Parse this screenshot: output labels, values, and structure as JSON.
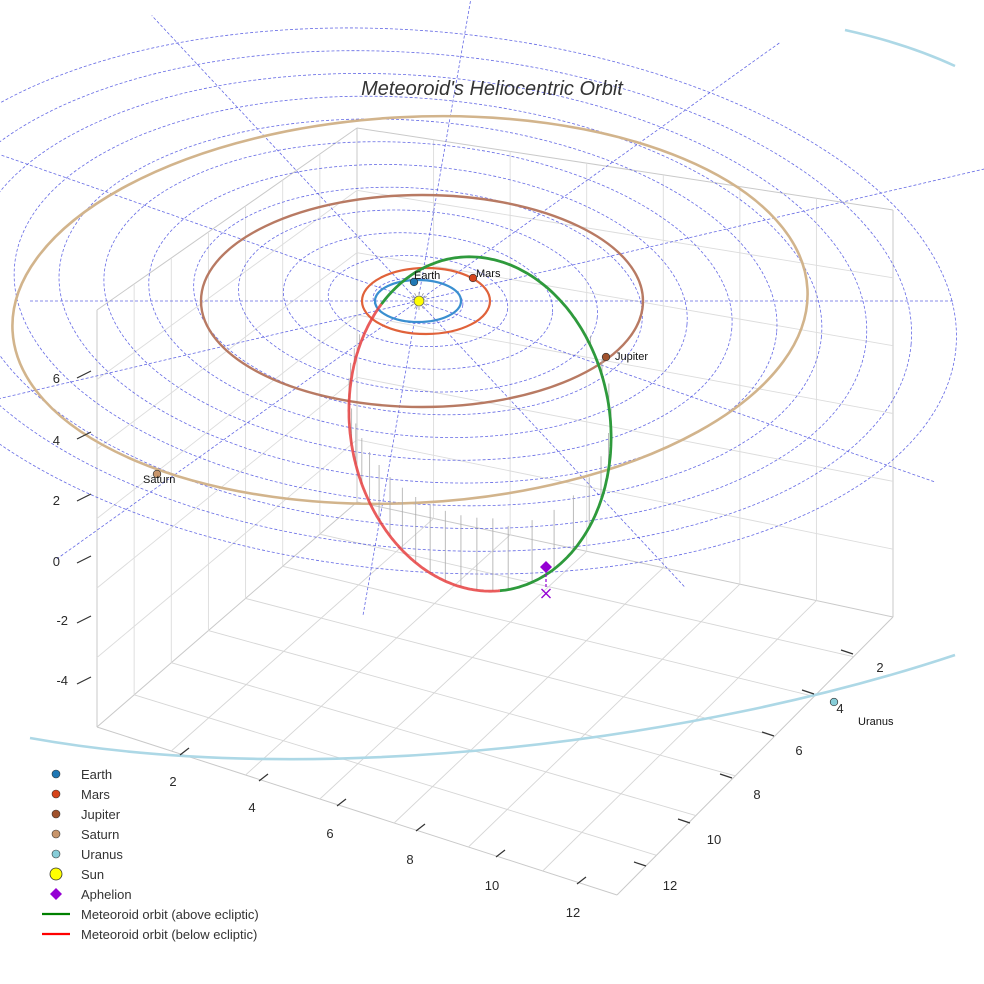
{
  "chart_data": {
    "type": "line",
    "title": "Meteoroid's Heliocentric Orbit",
    "axes": {
      "x": {
        "ticks": [
          2,
          4,
          6,
          8,
          10,
          12
        ],
        "range": [
          0,
          13
        ]
      },
      "y": {
        "ticks": [
          2,
          4,
          6,
          8,
          10,
          12
        ],
        "range": [
          0,
          13
        ]
      },
      "z": {
        "ticks": [
          -4,
          -2,
          0,
          2,
          4,
          6
        ],
        "range": [
          -5,
          7
        ]
      },
      "grid": true
    },
    "bodies": [
      {
        "name": "Earth",
        "color": "#1f77b4",
        "label": "Earth"
      },
      {
        "name": "Mars",
        "color": "#d6451b",
        "label": "Mars"
      },
      {
        "name": "Jupiter",
        "color": "#a0522d",
        "label": "Jupiter"
      },
      {
        "name": "Saturn",
        "color": "#c8956b",
        "label": "Saturn"
      },
      {
        "name": "Uranus",
        "color": "#87cdd8",
        "label": "Uranus"
      }
    ],
    "sun": {
      "name": "Sun",
      "color": "#ffff00"
    },
    "orbit_colors": {
      "Earth": "#3a8fd0",
      "Mars": "#e0623a",
      "Jupiter": "#b87a63",
      "Saturn": "#d2b48c",
      "Uranus": "#add8e6"
    },
    "meteoroid": {
      "above_color": "#2e9a3c",
      "below_color": "#e64040",
      "aphelion_color": "#9400d3"
    },
    "legend": {
      "position": "bottom-left",
      "items": [
        {
          "label": "Earth",
          "marker": "dot",
          "color": "#1f77b4"
        },
        {
          "label": "Mars",
          "marker": "dot",
          "color": "#d6451b"
        },
        {
          "label": "Jupiter",
          "marker": "dot",
          "color": "#a0522d"
        },
        {
          "label": "Saturn",
          "marker": "dot",
          "color": "#c8956b"
        },
        {
          "label": "Uranus",
          "marker": "dot",
          "color": "#87cdd8"
        },
        {
          "label": "Sun",
          "marker": "big-dot",
          "color": "#ffff00"
        },
        {
          "label": "Aphelion",
          "marker": "diamond",
          "color": "#9400d3"
        },
        {
          "label": "Meteoroid orbit (above ecliptic)",
          "marker": "line",
          "color": "#008000"
        },
        {
          "label": "Meteoroid orbit (below ecliptic)",
          "marker": "line",
          "color": "#ff0000"
        }
      ]
    }
  }
}
